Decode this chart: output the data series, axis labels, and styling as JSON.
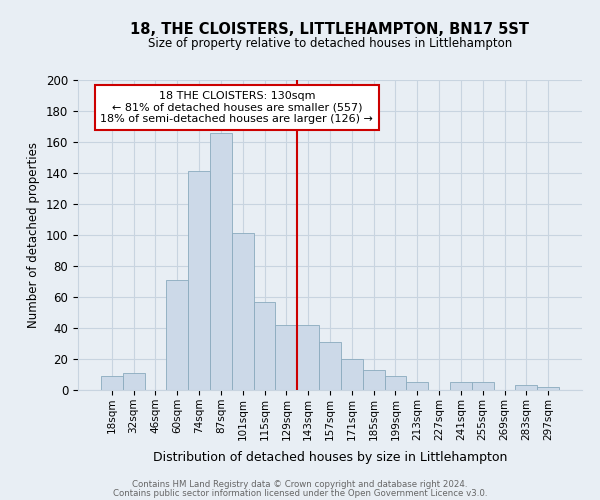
{
  "title": "18, THE CLOISTERS, LITTLEHAMPTON, BN17 5ST",
  "subtitle": "Size of property relative to detached houses in Littlehampton",
  "xlabel": "Distribution of detached houses by size in Littlehampton",
  "ylabel": "Number of detached properties",
  "footer_line1": "Contains HM Land Registry data © Crown copyright and database right 2024.",
  "footer_line2": "Contains public sector information licensed under the Open Government Licence v3.0.",
  "bar_labels": [
    "18sqm",
    "32sqm",
    "46sqm",
    "60sqm",
    "74sqm",
    "87sqm",
    "101sqm",
    "115sqm",
    "129sqm",
    "143sqm",
    "157sqm",
    "171sqm",
    "185sqm",
    "199sqm",
    "213sqm",
    "227sqm",
    "241sqm",
    "255sqm",
    "269sqm",
    "283sqm",
    "297sqm"
  ],
  "bar_values": [
    9,
    11,
    0,
    71,
    141,
    166,
    101,
    57,
    42,
    42,
    31,
    20,
    13,
    9,
    5,
    0,
    5,
    5,
    0,
    3,
    2
  ],
  "bar_color": "#ccd9e8",
  "bar_edge_color": "#8aaabe",
  "vline_x_idx": 8.5,
  "vline_color": "#cc0000",
  "ylim": [
    0,
    200
  ],
  "yticks": [
    0,
    20,
    40,
    60,
    80,
    100,
    120,
    140,
    160,
    180,
    200
  ],
  "annotation_title": "18 THE CLOISTERS: 130sqm",
  "annotation_line1": "← 81% of detached houses are smaller (557)",
  "annotation_line2": "18% of semi-detached houses are larger (126) →",
  "annotation_box_color": "#ffffff",
  "annotation_box_edge_color": "#cc0000",
  "grid_color": "#c8d4e0",
  "background_color": "#e8eef4"
}
